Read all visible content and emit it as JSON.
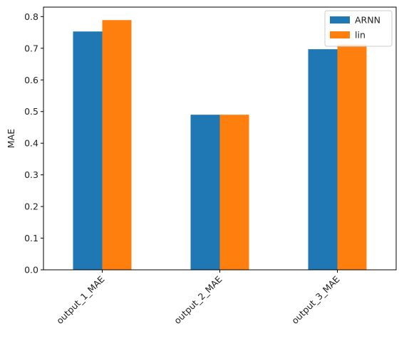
{
  "chart_data": {
    "type": "bar",
    "title": "",
    "xlabel": "",
    "ylabel": "MAE",
    "categories": [
      "output_1_MAE",
      "output_2_MAE",
      "output_3_MAE"
    ],
    "series": [
      {
        "name": "ARNN",
        "color": "#1f77b4",
        "values": [
          0.753,
          0.49,
          0.697
        ]
      },
      {
        "name": "lin",
        "color": "#ff7f0e",
        "values": [
          0.789,
          0.49,
          0.712
        ]
      }
    ],
    "ylim": [
      0,
      0.83
    ],
    "yticks": [
      "0.0",
      "0.1",
      "0.2",
      "0.3",
      "0.4",
      "0.5",
      "0.6",
      "0.7",
      "0.8"
    ],
    "grid": false,
    "legend_position": "top-right"
  }
}
